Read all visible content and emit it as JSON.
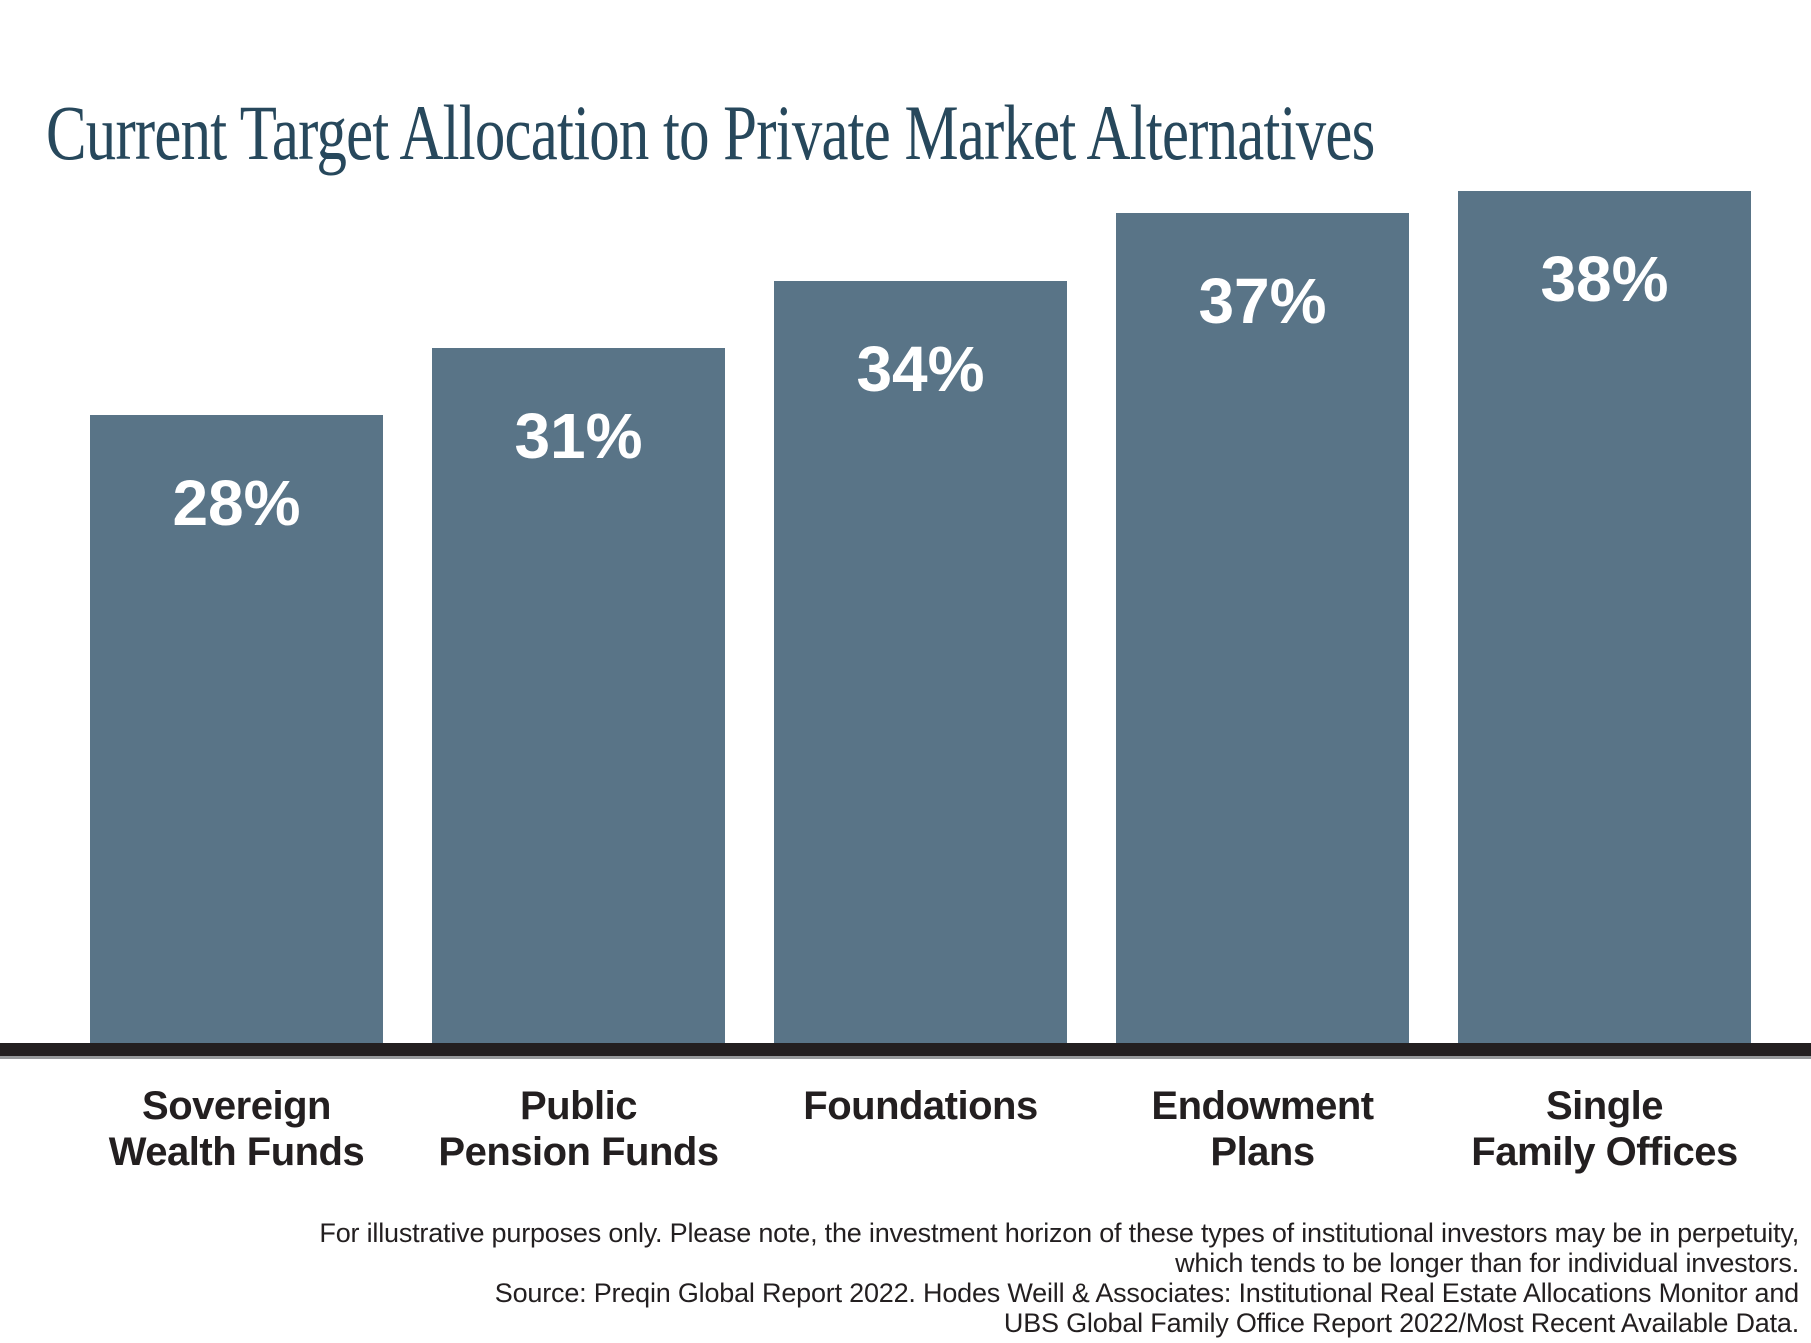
{
  "title": "Current Target Allocation to Private Market Alternatives",
  "chart_data": {
    "type": "bar",
    "title": "Current Target Allocation to Private Market Alternatives",
    "categories": [
      "Sovereign Wealth Funds",
      "Public Pension Funds",
      "Foundations",
      "Endowment Plans",
      "Single Family Offices"
    ],
    "categories_lines": [
      [
        "Sovereign",
        "Wealth Funds"
      ],
      [
        "Public",
        "Pension Funds"
      ],
      [
        "Foundations"
      ],
      [
        "Endowment",
        "Plans"
      ],
      [
        "Single",
        "Family Offices"
      ]
    ],
    "values": [
      28,
      31,
      34,
      37,
      38
    ],
    "value_labels": [
      "28%",
      "31%",
      "34%",
      "37%",
      "38%"
    ],
    "xlabel": "",
    "ylabel": "",
    "ylim": [
      0,
      40
    ],
    "grid": false,
    "legend": false,
    "bar_color": "#597487",
    "value_label_color": "#FFFFFF"
  },
  "footnote": {
    "lines": [
      "For illustrative purposes only. Please note, the investment horizon of these types of institutional investors may be in perpetuity,",
      "which tends to be longer than for individual investors.",
      "Source: Preqin Global Report 2022. Hodes Weill & Associates: Institutional Real Estate Allocations Monitor and",
      "UBS Global Family Office Report 2022/Most Recent Available Data."
    ]
  },
  "colors": {
    "title": "#27485C",
    "bar": "#597487",
    "axis_line": "#231F20",
    "axis_underline": "#97999B",
    "category_label": "#231F20",
    "footnote": "#231F20",
    "background": "#FFFFFF"
  }
}
